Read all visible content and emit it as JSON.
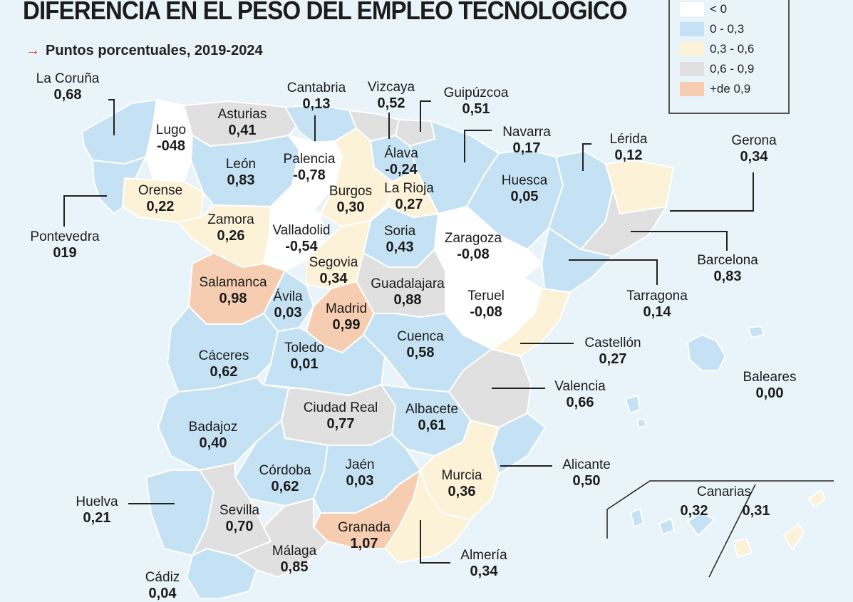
{
  "title": "DIFERENCIA EN EL PESO DEL EMPLEO TECNOLÓGICO",
  "subtitle": "Puntos porcentuales, 2019-2024",
  "subtitle_arrow": "→",
  "colors": {
    "lt0": "#ffffff",
    "r0_03": "#c5e2f4",
    "r03_06": "#fcf2d8",
    "r06_09": "#e0e0e0",
    "gt09": "#f6cdb0",
    "background": "#e8f3fa",
    "outline": "#ffffff"
  },
  "legend": [
    {
      "label": "< 0",
      "color": "#ffffff"
    },
    {
      "label": "0 - 0,3",
      "color": "#c5e2f4"
    },
    {
      "label": "0,3 - 0,6",
      "color": "#fcf2d8"
    },
    {
      "label": "0,6 - 0,9",
      "color": "#e0e0e0"
    },
    {
      "label": "+de 0,9",
      "color": "#f6cdb0"
    }
  ],
  "provinces": [
    {
      "name": "La Coruña",
      "value": "0,68"
    },
    {
      "name": "Lugo",
      "value": "-048"
    },
    {
      "name": "Asturias",
      "value": "0,41"
    },
    {
      "name": "Cantabria",
      "value": "0,13"
    },
    {
      "name": "Vizcaya",
      "value": "0,52"
    },
    {
      "name": "Guipúzcoa",
      "value": "0,51"
    },
    {
      "name": "Navarra",
      "value": "0,17"
    },
    {
      "name": "Lérida",
      "value": "0,12"
    },
    {
      "name": "Gerona",
      "value": "0,34"
    },
    {
      "name": "León",
      "value": "0,83"
    },
    {
      "name": "Palencia",
      "value": "-0,78"
    },
    {
      "name": "Álava",
      "value": "-0,24"
    },
    {
      "name": "Huesca",
      "value": "0,05"
    },
    {
      "name": "Orense",
      "value": "0,22"
    },
    {
      "name": "Burgos",
      "value": "0,30"
    },
    {
      "name": "La Rioja",
      "value": "0,27"
    },
    {
      "name": "Pontevedra",
      "value": "019"
    },
    {
      "name": "Zamora",
      "value": "0,26"
    },
    {
      "name": "Valladolid",
      "value": "-0,54"
    },
    {
      "name": "Soria",
      "value": "0,43"
    },
    {
      "name": "Zaragoza",
      "value": "-0,08"
    },
    {
      "name": "Barcelona",
      "value": "0,83"
    },
    {
      "name": "Segovia",
      "value": "0,34"
    },
    {
      "name": "Salamanca",
      "value": "0,98"
    },
    {
      "name": "Ávila",
      "value": "0,03"
    },
    {
      "name": "Guadalajara",
      "value": "0,88"
    },
    {
      "name": "Tarragona",
      "value": "0,14"
    },
    {
      "name": "Madrid",
      "value": "0,99"
    },
    {
      "name": "Teruel",
      "value": "-0,08"
    },
    {
      "name": "Cuenca",
      "value": "0,58"
    },
    {
      "name": "Castellón",
      "value": "0,27"
    },
    {
      "name": "Cáceres",
      "value": "0,62"
    },
    {
      "name": "Toledo",
      "value": "0,01"
    },
    {
      "name": "Baleares",
      "value": "0,00"
    },
    {
      "name": "Valencia",
      "value": "0,66"
    },
    {
      "name": "Ciudad Real",
      "value": "0,77"
    },
    {
      "name": "Albacete",
      "value": "0,61"
    },
    {
      "name": "Badajoz",
      "value": "0,40"
    },
    {
      "name": "Córdoba",
      "value": "0,62"
    },
    {
      "name": "Jaén",
      "value": "0,03"
    },
    {
      "name": "Murcia",
      "value": "0,36"
    },
    {
      "name": "Alicante",
      "value": "0,50"
    },
    {
      "name": "Huelva",
      "value": "0,21"
    },
    {
      "name": "Sevilla",
      "value": "0,70"
    },
    {
      "name": "Granada",
      "value": "1,07"
    },
    {
      "name": "Málaga",
      "value": "0,85"
    },
    {
      "name": "Almería",
      "value": "0,34"
    },
    {
      "name": "Cádiz",
      "value": "0,04"
    }
  ],
  "canarias": {
    "name": "Canarias",
    "value_left": "0,32",
    "value_right": "0,31"
  }
}
